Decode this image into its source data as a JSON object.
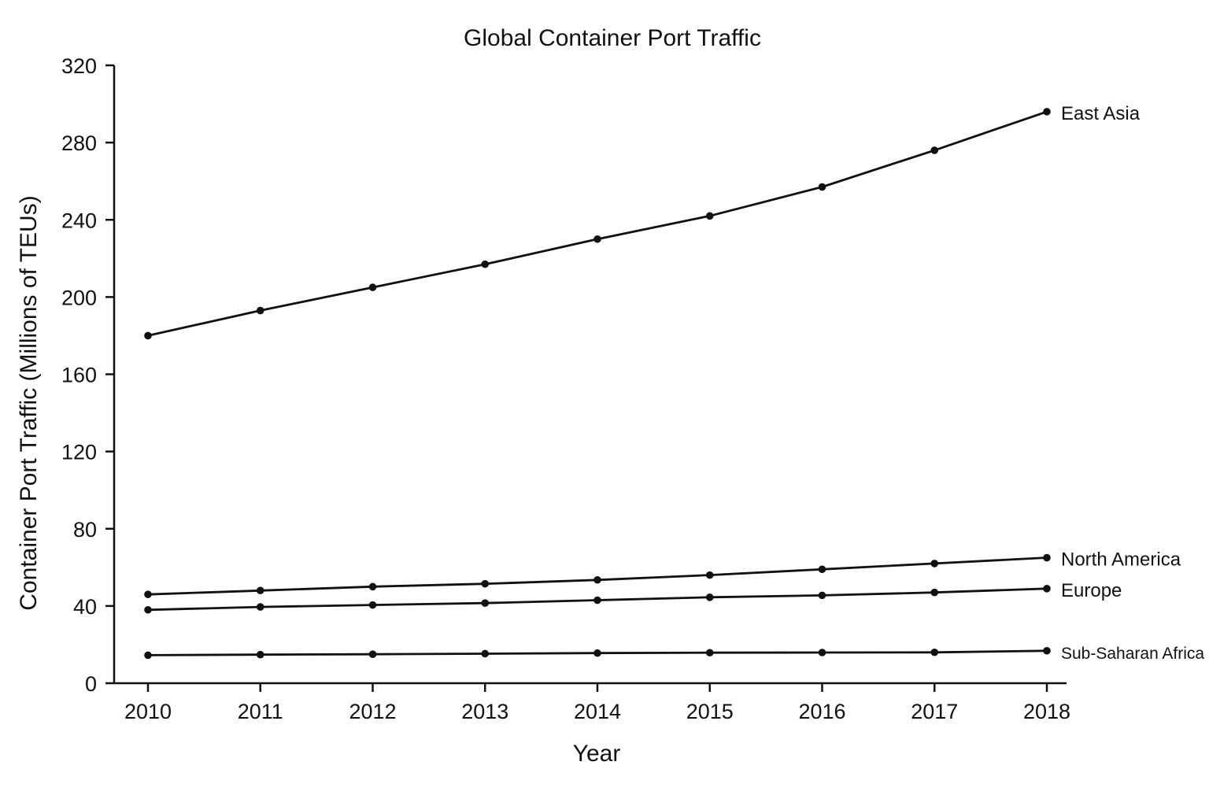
{
  "chart_data": {
    "type": "line",
    "title": "Global Container Port Traffic",
    "xlabel": "Year",
    "ylabel": "Container Port Traffic (Millions of TEUs)",
    "x": [
      "2010",
      "2011",
      "2012",
      "2013",
      "2014",
      "2015",
      "2016",
      "2017",
      "2018"
    ],
    "ylim": [
      0,
      320
    ],
    "yticks": [
      0,
      40,
      80,
      120,
      160,
      200,
      240,
      280,
      320
    ],
    "grid": false,
    "legend": "direct labels at line ends",
    "series": [
      {
        "name": "East Asia",
        "values": [
          180,
          193,
          205,
          217,
          230,
          242,
          257,
          276,
          296
        ]
      },
      {
        "name": "North America",
        "values": [
          46,
          48,
          50,
          51.5,
          53.5,
          56,
          59,
          62,
          65
        ]
      },
      {
        "name": "Europe",
        "values": [
          38,
          39.5,
          40.5,
          41.5,
          43,
          44.5,
          45.5,
          47,
          49
        ]
      },
      {
        "name": "Sub-Saharan Africa",
        "values": [
          14.5,
          14.8,
          15,
          15.3,
          15.6,
          15.8,
          15.9,
          16,
          16.8
        ]
      }
    ],
    "colors": {
      "line": "#111111",
      "background": "#ffffff"
    }
  }
}
